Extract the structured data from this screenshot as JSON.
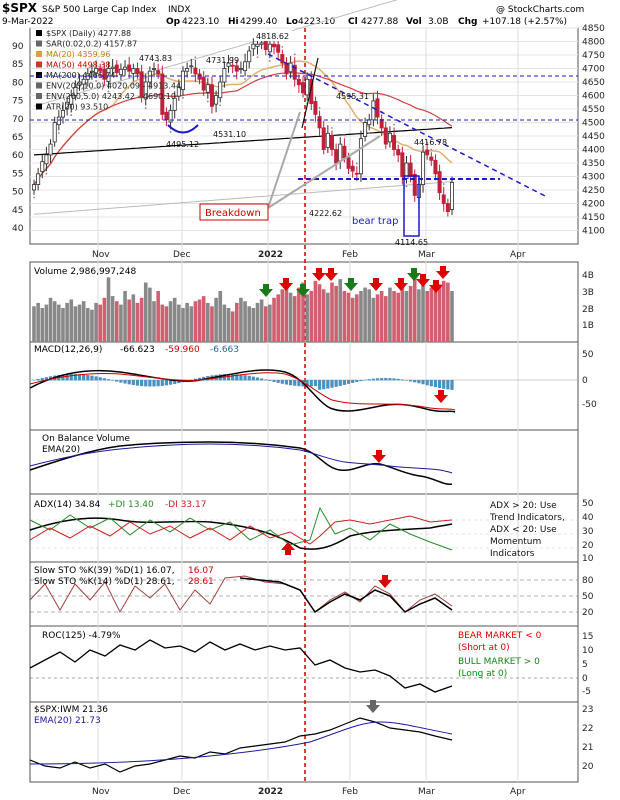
{
  "header": {
    "symbol": "$SPX",
    "name": "S&P 500 Large Cap Index",
    "exchange": "INDX",
    "watermark": "@ StockCharts.com",
    "date": "9-Mar-2022",
    "open_label": "Op",
    "open": "4223.10",
    "high_label": "Hi",
    "high": "4299.40",
    "low_label": "Lo",
    "low": "4223.10",
    "close_label": "Cl",
    "close": "4277.88",
    "vol_label": "Vol",
    "vol": "3.0B",
    "chg_label": "Chg",
    "chg": "+107.18 (+2.57%)"
  },
  "price_legend": [
    {
      "text": "$SPX (Daily) 4277.88",
      "color": "#000000"
    },
    {
      "text": "SAR(0.02,0.2) 4157.87",
      "color": "#666666"
    },
    {
      "text": "MA(20) 4359.96",
      "color": "#d8a040"
    },
    {
      "text": "MA(50) 4498.38",
      "color": "#d03030"
    },
    {
      "text": "MA(200) 4466.74",
      "color": "#000000"
    },
    {
      "text": "ENV(200,10.0) 4020.09 - 4913.44",
      "color": "#666666"
    },
    {
      "text": "ENV(200,5.0) 4243.42 - 4690.10",
      "color": "#666666"
    },
    {
      "text": "ATR(20) 93.510",
      "color": "#000000"
    }
  ],
  "annotations": {
    "breakdown": "Breakdown",
    "bear_trap": "bear trap",
    "p4818": "4818.62",
    "p4743": "4743.83",
    "p4731": "4731.99",
    "p4595": "4595.31",
    "p4531": "4531.10",
    "p4495": "4495.12",
    "p4416": "4416.78",
    "p4222": "4222.62",
    "p4114": "4114.65"
  },
  "chart_data": [
    {
      "type": "candlestick",
      "title": "$SPX (Daily) 4277.88",
      "x_labels": [
        "Nov",
        "Dec",
        "2022",
        "Feb",
        "Mar",
        "Apr"
      ],
      "ylim": [
        4050,
        4850
      ],
      "y_ticks": [
        4100,
        4150,
        4200,
        4250,
        4300,
        4350,
        4400,
        4450,
        4500,
        4550,
        4600,
        4650,
        4700,
        4750,
        4800,
        4850
      ],
      "atr_ticks": [
        40,
        45,
        50,
        55,
        60,
        65,
        70,
        75,
        80,
        85,
        90
      ],
      "closes": [
        4270,
        4310,
        4355,
        4380,
        4420,
        4500,
        4520,
        4545,
        4575,
        4600,
        4630,
        4650,
        4660,
        4680,
        4690,
        4700,
        4690,
        4660,
        4700,
        4705,
        4685,
        4697,
        4705,
        4690,
        4700,
        4680,
        4595,
        4650,
        4690,
        4700,
        4680,
        4530,
        4510,
        4545,
        4590,
        4630,
        4690,
        4700,
        4710,
        4680,
        4660,
        4620,
        4640,
        4560,
        4600,
        4650,
        4700,
        4720,
        4710,
        4690,
        4700,
        4725,
        4765,
        4790,
        4790,
        4795,
        4770,
        4790,
        4780,
        4760,
        4720,
        4680,
        4720,
        4660,
        4640,
        4610,
        4660,
        4570,
        4530,
        4480,
        4400,
        4460,
        4400,
        4350,
        4420,
        4370,
        4330,
        4320,
        4310,
        4440,
        4500,
        4510,
        4580,
        4520,
        4480,
        4420,
        4460,
        4400,
        4380,
        4300,
        4350,
        4300,
        4230,
        4270,
        4390,
        4380,
        4360,
        4310,
        4240,
        4200,
        4170,
        4278
      ],
      "volume_ticks": [
        "1B",
        "2B",
        "3B",
        "4B"
      ],
      "volume_legend": "Volume 2,986,997,248",
      "volume_values": [
        2.1,
        2.3,
        2.0,
        2.2,
        2.6,
        2.4,
        2.2,
        2.0,
        2.3,
        2.5,
        2.1,
        2.2,
        2.4,
        2.0,
        1.9,
        2.3,
        2.2,
        2.6,
        3.8,
        2.7,
        2.4,
        2.2,
        3.0,
        2.5,
        2.8,
        2.3,
        2.6,
        3.5,
        3.2,
        2.4,
        3.0,
        2.2,
        2.1,
        2.4,
        2.6,
        2.2,
        2.0,
        2.3,
        2.1,
        2.4,
        2.5,
        2.7,
        2.3,
        2.1,
        2.6,
        3.0,
        2.2,
        2.0,
        1.8,
        2.3,
        2.6,
        2.4,
        2.1,
        2.0,
        2.3,
        2.5,
        2.1,
        2.2,
        2.6,
        2.8,
        3.1,
        3.3,
        2.9,
        2.7,
        3.2,
        3.5,
        2.8,
        3.0,
        3.6,
        3.4,
        3.1,
        2.9,
        3.5,
        3.3,
        3.7,
        3.0,
        2.9,
        2.6,
        2.8,
        3.0,
        3.2,
        3.1,
        2.6,
        2.8,
        3.0,
        2.7,
        3.2,
        3.0,
        2.9,
        3.4,
        3.0,
        3.3,
        3.9,
        3.1,
        3.5,
        3.0,
        3.2,
        3.3,
        3.4,
        3.6,
        3.5,
        3.0
      ]
    }
  ],
  "indicators": {
    "macd": {
      "label": "MACD(12,26,9)",
      "v1": "-66.623",
      "v2": "-59.960",
      "v3": "-6.663",
      "ticks": [
        "-50",
        "0",
        "50"
      ]
    },
    "obv": {
      "label": "On Balance Volume",
      "ema": "EMA(20)"
    },
    "adx": {
      "label": "ADX(14) 34.84",
      "pdi": "+DI 13.40",
      "mdi": "-DI 33.17",
      "ticks": [
        "10",
        "20",
        "30",
        "40",
        "50"
      ],
      "note1": "ADX > 20: Use",
      "note2": "Trend Indicators,",
      "note3": "ADX < 20: Use",
      "note4": "Momentum",
      "note5": "Indicators"
    },
    "sto": {
      "label1": "Slow STO %K(39) %D(1) 16.07,",
      "label1b": "16.07",
      "label2": "Slow STO %K(14) %D(1) 28.61,",
      "label2b": "28.61",
      "ticks": [
        "20",
        "50",
        "80"
      ]
    },
    "roc": {
      "label": "ROC(125) -4.79%",
      "ticks": [
        "-5",
        "0",
        "5",
        "10",
        "15"
      ],
      "bear1": "BEAR MARKET < 0",
      "bear2": "(Short at 0)",
      "bull1": "BULL MARKET > 0",
      "bull2": "(Long at 0)"
    },
    "ratio": {
      "label": "$SPX:IWM 21.36",
      "ema": "EMA(20) 21.73",
      "ticks": [
        "20",
        "21",
        "22",
        "23"
      ]
    }
  },
  "colors": {
    "up": "#2f2f2f",
    "down": "#c0203a",
    "blue_dash": "#1a1acc",
    "red_line": "#cc0000",
    "green": "#1a7a1a",
    "bear": "#dd0000",
    "bull": "#118811"
  }
}
